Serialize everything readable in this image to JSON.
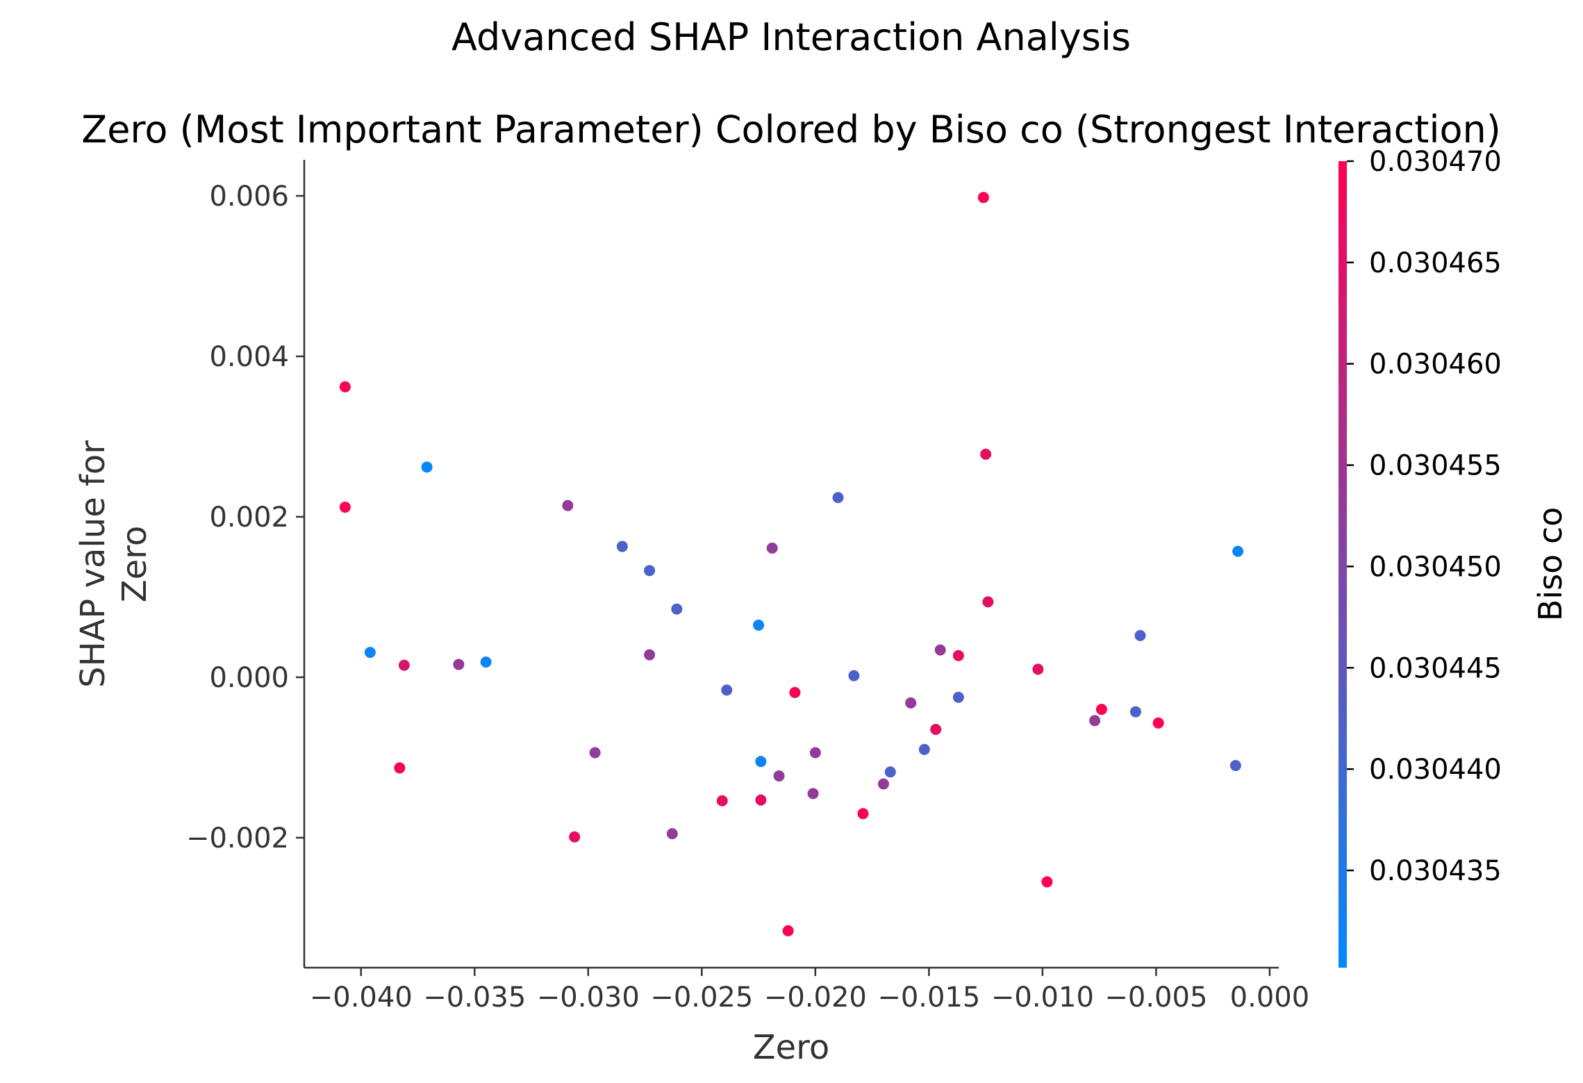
{
  "chart_data": {
    "type": "scatter",
    "suptitle": "Advanced SHAP Interaction Analysis",
    "title": "Zero (Most Important Parameter) Colored by Biso co (Strongest Interaction)",
    "xlabel": "Zero",
    "ylabel_lines": [
      "SHAP value for",
      "Zero"
    ],
    "xlim": [
      -0.0425,
      0.0004
    ],
    "ylim": [
      -0.00362,
      0.00645
    ],
    "x_ticks": [
      {
        "value": -0.04,
        "label": "−0.040"
      },
      {
        "value": -0.035,
        "label": "−0.035"
      },
      {
        "value": -0.03,
        "label": "−0.030"
      },
      {
        "value": -0.025,
        "label": "−0.025"
      },
      {
        "value": -0.02,
        "label": "−0.020"
      },
      {
        "value": -0.015,
        "label": "−0.015"
      },
      {
        "value": -0.01,
        "label": "−0.010"
      },
      {
        "value": -0.005,
        "label": "−0.005"
      },
      {
        "value": 0.0,
        "label": "0.000"
      }
    ],
    "y_ticks": [
      {
        "value": 0.006,
        "label": "0.006"
      },
      {
        "value": 0.004,
        "label": "0.004"
      },
      {
        "value": 0.002,
        "label": "0.002"
      },
      {
        "value": 0.0,
        "label": "0.000"
      },
      {
        "value": -0.002,
        "label": "−0.002"
      }
    ],
    "colorbar": {
      "label": "Biso co",
      "range": [
        0.0304302,
        0.03047
      ],
      "colors": [
        "#008bfb",
        "#ff0052"
      ],
      "ticks": [
        {
          "value": 0.03047,
          "label": "0.030470"
        },
        {
          "value": 0.030465,
          "label": "0.030465"
        },
        {
          "value": 0.03046,
          "label": "0.030460"
        },
        {
          "value": 0.030455,
          "label": "0.030455"
        },
        {
          "value": 0.03045,
          "label": "0.030450"
        },
        {
          "value": 0.030445,
          "label": "0.030445"
        },
        {
          "value": 0.03044,
          "label": "0.030440"
        },
        {
          "value": 0.030435,
          "label": "0.030435"
        }
      ]
    },
    "points": [
      {
        "x": -0.0407,
        "y": 0.00362,
        "c": 0.03047
      },
      {
        "x": -0.0407,
        "y": 0.00212,
        "c": 0.03047
      },
      {
        "x": -0.0371,
        "y": 0.00262,
        "c": 0.030431
      },
      {
        "x": -0.0396,
        "y": 0.00031,
        "c": 0.030432
      },
      {
        "x": -0.0381,
        "y": 0.00015,
        "c": 0.030464
      },
      {
        "x": -0.0383,
        "y": -0.00113,
        "c": 0.030469
      },
      {
        "x": -0.0357,
        "y": 0.00016,
        "c": 0.030453
      },
      {
        "x": -0.0345,
        "y": 0.00019,
        "c": 0.030432
      },
      {
        "x": -0.0309,
        "y": 0.00214,
        "c": 0.030454
      },
      {
        "x": -0.0297,
        "y": -0.00094,
        "c": 0.030453
      },
      {
        "x": -0.0306,
        "y": -0.00199,
        "c": 0.030466
      },
      {
        "x": -0.0285,
        "y": 0.00163,
        "c": 0.030442
      },
      {
        "x": -0.0273,
        "y": 0.00133,
        "c": 0.030442
      },
      {
        "x": -0.0273,
        "y": 0.00028,
        "c": 0.030453
      },
      {
        "x": -0.0261,
        "y": 0.00085,
        "c": 0.030442
      },
      {
        "x": -0.0263,
        "y": -0.00195,
        "c": 0.030453
      },
      {
        "x": -0.0239,
        "y": -0.00016,
        "c": 0.030442
      },
      {
        "x": -0.0241,
        "y": -0.00154,
        "c": 0.030466
      },
      {
        "x": -0.0225,
        "y": 0.00065,
        "c": 0.030432
      },
      {
        "x": -0.0224,
        "y": -0.00105,
        "c": 0.030432
      },
      {
        "x": -0.0224,
        "y": -0.00153,
        "c": 0.030466
      },
      {
        "x": -0.0219,
        "y": 0.00161,
        "c": 0.030453
      },
      {
        "x": -0.0216,
        "y": -0.00123,
        "c": 0.030453
      },
      {
        "x": -0.0209,
        "y": -0.00019,
        "c": 0.030469
      },
      {
        "x": -0.0212,
        "y": -0.00316,
        "c": 0.03047
      },
      {
        "x": -0.019,
        "y": 0.00224,
        "c": 0.030442
      },
      {
        "x": -0.02,
        "y": -0.00094,
        "c": 0.030453
      },
      {
        "x": -0.0201,
        "y": -0.00145,
        "c": 0.030453
      },
      {
        "x": -0.0183,
        "y": 2e-05,
        "c": 0.030442
      },
      {
        "x": -0.0179,
        "y": -0.0017,
        "c": 0.030469
      },
      {
        "x": -0.0167,
        "y": -0.00118,
        "c": 0.030442
      },
      {
        "x": -0.017,
        "y": -0.00133,
        "c": 0.030453
      },
      {
        "x": -0.0158,
        "y": -0.00032,
        "c": 0.030453
      },
      {
        "x": -0.0152,
        "y": -0.0009,
        "c": 0.030442
      },
      {
        "x": -0.0145,
        "y": 0.00034,
        "c": 0.030453
      },
      {
        "x": -0.0147,
        "y": -0.00065,
        "c": 0.030466
      },
      {
        "x": -0.0137,
        "y": 0.00027,
        "c": 0.030466
      },
      {
        "x": -0.0137,
        "y": -0.00025,
        "c": 0.030442
      },
      {
        "x": -0.0126,
        "y": 0.00598,
        "c": 0.03047
      },
      {
        "x": -0.0125,
        "y": 0.00278,
        "c": 0.030466
      },
      {
        "x": -0.0124,
        "y": 0.00094,
        "c": 0.030466
      },
      {
        "x": -0.0102,
        "y": 0.0001,
        "c": 0.030466
      },
      {
        "x": -0.0098,
        "y": -0.00255,
        "c": 0.03047
      },
      {
        "x": -0.0077,
        "y": -0.00054,
        "c": 0.030453
      },
      {
        "x": -0.0074,
        "y": -0.0004,
        "c": 0.03047
      },
      {
        "x": -0.0057,
        "y": 0.00052,
        "c": 0.030442
      },
      {
        "x": -0.0059,
        "y": -0.00043,
        "c": 0.030442
      },
      {
        "x": -0.0049,
        "y": -0.00057,
        "c": 0.03047
      },
      {
        "x": -0.0014,
        "y": 0.00157,
        "c": 0.030432
      },
      {
        "x": -0.0015,
        "y": -0.0011,
        "c": 0.030442
      }
    ]
  }
}
